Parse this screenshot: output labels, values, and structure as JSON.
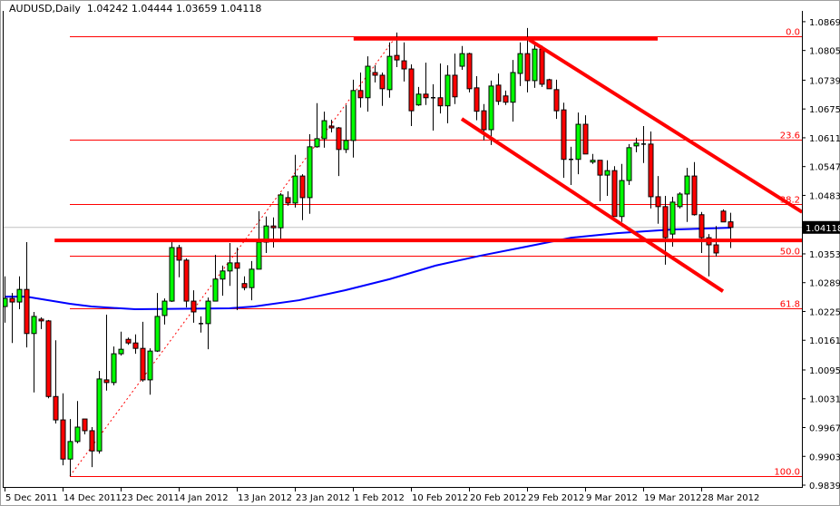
{
  "header": {
    "symbol": "AUDUSD,Daily",
    "ohlc": "1.04242 1.04444 1.03659 1.04118"
  },
  "colors": {
    "bull": "#00ff00",
    "bear": "#ff0000",
    "ma": "#0000ff",
    "lines": "#ff0000",
    "current_line": "#c0c0c0",
    "grid_text": "#000000"
  },
  "chart_data": {
    "type": "candlestick",
    "title": "AUDUSD,Daily",
    "ylim": [
      0.9835,
      1.0893
    ],
    "y_ticks": [
      "1.08690",
      "1.08050",
      "1.07390",
      "1.06750",
      "1.06110",
      "1.05470",
      "1.04830",
      "1.04118",
      "1.03530",
      "1.02890",
      "1.02250",
      "1.01610",
      "1.00950",
      "1.00310",
      "0.99670",
      "0.99030",
      "0.98390"
    ],
    "y_tick_values": [
      1.0869,
      1.0805,
      1.0739,
      1.0675,
      1.0611,
      1.0547,
      1.0483,
      null,
      1.0353,
      1.0289,
      1.0225,
      1.0161,
      1.0095,
      1.0031,
      0.9967,
      0.9903,
      0.9839
    ],
    "current_price": "1.04118",
    "x_labels": [
      {
        "bar": 0,
        "label": "5 Dec 2011"
      },
      {
        "bar": 8,
        "label": "14 Dec 2011"
      },
      {
        "bar": 16,
        "label": "23 Dec 2011"
      },
      {
        "bar": 24,
        "label": "4 Jan 2012"
      },
      {
        "bar": 32,
        "label": "13 Jan 2012"
      },
      {
        "bar": 40,
        "label": "23 Jan 2012"
      },
      {
        "bar": 48,
        "label": "1 Feb 2012"
      },
      {
        "bar": 56,
        "label": "10 Feb 2012"
      },
      {
        "bar": 64,
        "label": "20 Feb 2012"
      },
      {
        "bar": 72,
        "label": "29 Feb 2012"
      },
      {
        "bar": 80,
        "label": "9 Mar 2012"
      },
      {
        "bar": 88,
        "label": "19 Mar 2012"
      },
      {
        "bar": 96,
        "label": "28 Mar 2012"
      }
    ],
    "candles_ohlc": [
      [
        1.0236,
        1.0303,
        1.02,
        1.0254
      ],
      [
        1.0254,
        1.0266,
        1.0155,
        1.0246
      ],
      [
        1.0246,
        1.0303,
        1.023,
        1.0274
      ],
      [
        1.0274,
        1.0379,
        1.0145,
        1.0176
      ],
      [
        1.0176,
        1.0224,
        1.0045,
        1.0214
      ],
      [
        1.0208,
        1.0212,
        1.0186,
        1.0204
      ],
      [
        1.0204,
        1.0206,
        1.0032,
        1.0036
      ],
      [
        1.0036,
        1.0161,
        0.9976,
        0.9984
      ],
      [
        0.9984,
        1.0043,
        0.9883,
        0.9897
      ],
      [
        0.9897,
        0.9986,
        0.9859,
        0.9936
      ],
      [
        0.9936,
        1.0026,
        0.9932,
        0.9968
      ],
      [
        0.9986,
        0.9986,
        0.9952,
        0.996
      ],
      [
        0.996,
        0.9968,
        0.9879,
        0.9915
      ],
      [
        0.9915,
        1.0093,
        0.9909,
        1.0075
      ],
      [
        1.0073,
        1.0218,
        1.0049,
        1.0067
      ],
      [
        1.0067,
        1.0147,
        1.0061,
        1.0131
      ],
      [
        1.0131,
        1.018,
        1.0127,
        1.0141
      ],
      [
        1.0163,
        1.0167,
        1.0151,
        1.0155
      ],
      [
        1.0155,
        1.0174,
        1.0131,
        1.0143
      ],
      [
        1.0143,
        1.0202,
        1.0069,
        1.0073
      ],
      [
        1.0073,
        1.0143,
        1.004,
        1.0137
      ],
      [
        1.0137,
        1.0266,
        1.0135,
        1.0214
      ],
      [
        1.0216,
        1.0254,
        1.0196,
        1.0248
      ],
      [
        1.0248,
        1.0379,
        1.0246,
        1.0367
      ],
      [
        1.0367,
        1.0373,
        1.0301,
        1.0339
      ],
      [
        1.0339,
        1.0343,
        1.0234,
        1.0248
      ],
      [
        1.0248,
        1.0272,
        1.02,
        1.0224
      ],
      [
        1.0198,
        1.0214,
        1.0178,
        1.0198
      ],
      [
        1.0198,
        1.0256,
        1.0141,
        1.0248
      ],
      [
        1.0248,
        1.0351,
        1.0248,
        1.0297
      ],
      [
        1.0297,
        1.0327,
        1.026,
        1.0315
      ],
      [
        1.0315,
        1.0377,
        1.0282,
        1.0333
      ],
      [
        1.0333,
        1.0367,
        1.0228,
        1.0321
      ],
      [
        1.0287,
        1.0303,
        1.0272,
        1.0278
      ],
      [
        1.0278,
        1.0337,
        1.025,
        1.0319
      ],
      [
        1.0319,
        1.0448,
        1.0319,
        1.0379
      ],
      [
        1.0379,
        1.0436,
        1.0355,
        1.0415
      ],
      [
        1.0415,
        1.0434,
        1.0367,
        1.0411
      ],
      [
        1.0411,
        1.0488,
        1.0383,
        1.0484
      ],
      [
        1.0478,
        1.0492,
        1.046,
        1.0466
      ],
      [
        1.0466,
        1.0573,
        1.0456,
        1.0526
      ],
      [
        1.0526,
        1.053,
        1.0428,
        1.0478
      ],
      [
        1.0478,
        1.0619,
        1.0442,
        1.0591
      ],
      [
        1.0591,
        1.0688,
        1.0589,
        1.0609
      ],
      [
        1.0609,
        1.0669,
        1.0589,
        1.0649
      ],
      [
        1.0637,
        1.0651,
        1.0623,
        1.0633
      ],
      [
        1.0633,
        1.0635,
        1.0526,
        1.0585
      ],
      [
        1.0585,
        1.0684,
        1.0577,
        1.0605
      ],
      [
        1.0605,
        1.074,
        1.0567,
        1.0716
      ],
      [
        1.0716,
        1.0756,
        1.0678,
        1.07
      ],
      [
        1.07,
        1.0792,
        1.0669,
        1.077
      ],
      [
        1.0756,
        1.0772,
        1.0734,
        1.075
      ],
      [
        1.075,
        1.0756,
        1.0682,
        1.072
      ],
      [
        1.0718,
        1.0823,
        1.07,
        1.0792
      ],
      [
        1.0794,
        1.0845,
        1.0768,
        1.0784
      ],
      [
        1.0782,
        1.0823,
        1.0736,
        1.0764
      ],
      [
        1.0764,
        1.0774,
        1.0637,
        1.0671
      ],
      [
        1.0684,
        1.0724,
        1.0682,
        1.0708
      ],
      [
        1.0708,
        1.0778,
        1.0684,
        1.07
      ],
      [
        1.07,
        1.073,
        1.0627,
        1.07
      ],
      [
        1.07,
        1.0776,
        1.0665,
        1.0682
      ],
      [
        1.0682,
        1.0772,
        1.0643,
        1.075
      ],
      [
        1.075,
        1.0798,
        1.0686,
        1.0702
      ],
      [
        1.077,
        1.0815,
        1.0762,
        1.0798
      ],
      [
        1.0798,
        1.08,
        1.0712,
        1.072
      ],
      [
        1.0722,
        1.0748,
        1.065,
        1.067
      ],
      [
        1.0671,
        1.0686,
        1.0605,
        1.0629
      ],
      [
        1.0629,
        1.0738,
        1.0595,
        1.0726
      ],
      [
        1.0728,
        1.0754,
        1.0684,
        1.0692
      ],
      [
        1.0704,
        1.0716,
        1.0684,
        1.069
      ],
      [
        1.069,
        1.0784,
        1.0647,
        1.0756
      ],
      [
        1.0754,
        1.0823,
        1.0726,
        1.0798
      ],
      [
        1.0798,
        1.0855,
        1.0712,
        1.0738
      ],
      [
        1.0738,
        1.0823,
        1.0722,
        1.0808
      ],
      [
        1.0808,
        1.0816,
        1.0724,
        1.073
      ],
      [
        1.074,
        1.0742,
        1.072,
        1.072
      ],
      [
        1.0718,
        1.074,
        1.0653,
        1.0671
      ],
      [
        1.0673,
        1.0689,
        1.0522,
        1.0563
      ],
      [
        1.0563,
        1.0591,
        1.0506,
        1.0563
      ],
      [
        1.0563,
        1.0667,
        1.053,
        1.0641
      ],
      [
        1.0641,
        1.0661,
        1.0575,
        1.0575
      ],
      [
        1.0557,
        1.0575,
        1.0553,
        1.0561
      ],
      [
        1.0561,
        1.0561,
        1.047,
        1.0528
      ],
      [
        1.0528,
        1.0561,
        1.0482,
        1.0538
      ],
      [
        1.0538,
        1.0548,
        1.0436,
        1.0436
      ],
      [
        1.0436,
        1.0553,
        1.0424,
        1.0516
      ],
      [
        1.0516,
        1.0597,
        1.0506,
        1.0589
      ],
      [
        1.0593,
        1.0611,
        1.0579,
        1.0599
      ],
      [
        1.0597,
        1.0637,
        1.0555,
        1.0597
      ],
      [
        1.0597,
        1.0625,
        1.0454,
        1.048
      ],
      [
        1.048,
        1.0526,
        1.042,
        1.0458
      ],
      [
        1.0458,
        1.0482,
        1.0329,
        1.0389
      ],
      [
        1.0397,
        1.048,
        1.0369,
        1.0468
      ],
      [
        1.0458,
        1.049,
        1.0454,
        1.0486
      ],
      [
        1.0486,
        1.0544,
        1.0424,
        1.0526
      ],
      [
        1.0526,
        1.0557,
        1.0438,
        1.044
      ],
      [
        1.044,
        1.0446,
        1.0355,
        1.0389
      ],
      [
        1.0389,
        1.0397,
        1.0303,
        1.0373
      ],
      [
        1.0373,
        1.0415,
        1.0347,
        1.0355
      ],
      [
        1.0448,
        1.0452,
        1.0424,
        1.0424
      ],
      [
        1.04242,
        1.04444,
        1.03659,
        1.04118
      ]
    ],
    "moving_average": [
      [
        0,
        1.0258
      ],
      [
        3,
        1.0258
      ],
      [
        9,
        1.0242
      ],
      [
        12,
        1.0236
      ],
      [
        18,
        1.023
      ],
      [
        31,
        1.0232
      ],
      [
        34.4,
        1.0236
      ],
      [
        40.6,
        1.025
      ],
      [
        46.9,
        1.0272
      ],
      [
        53.1,
        1.0297
      ],
      [
        59.4,
        1.0327
      ],
      [
        65.6,
        1.0349
      ],
      [
        71.9,
        1.0369
      ],
      [
        78.1,
        1.0389
      ],
      [
        84.4,
        1.0399
      ],
      [
        91.9,
        1.0407
      ],
      [
        100,
        1.0411
      ]
    ],
    "fibonacci": {
      "low": 0.9859,
      "high": 1.0837,
      "start_bar": 9,
      "end_bar": 54,
      "levels": [
        {
          "label": "0.0",
          "price": 1.0837
        },
        {
          "label": "23.6",
          "price": 1.0606
        },
        {
          "label": "38.2",
          "price": 1.0463
        },
        {
          "label": "50.0",
          "price": 1.0348
        },
        {
          "label": "61.8",
          "price": 1.0233
        },
        {
          "label": "100.0",
          "price": 0.9859
        }
      ]
    },
    "drawn_lines": [
      {
        "name": "resistance-top",
        "from": [
          48.1,
          1.0831
        ],
        "to": [
          90,
          1.0831
        ]
      },
      {
        "name": "support-level",
        "from": [
          6.9,
          1.0383
        ],
        "to": [
          110,
          1.0383
        ]
      },
      {
        "name": "channel-upper",
        "from": [
          72.3,
          1.0829
        ],
        "to": [
          109.9,
          1.0446
        ]
      },
      {
        "name": "channel-lower",
        "from": [
          63,
          1.0653
        ],
        "to": [
          99,
          1.027
        ]
      }
    ]
  }
}
